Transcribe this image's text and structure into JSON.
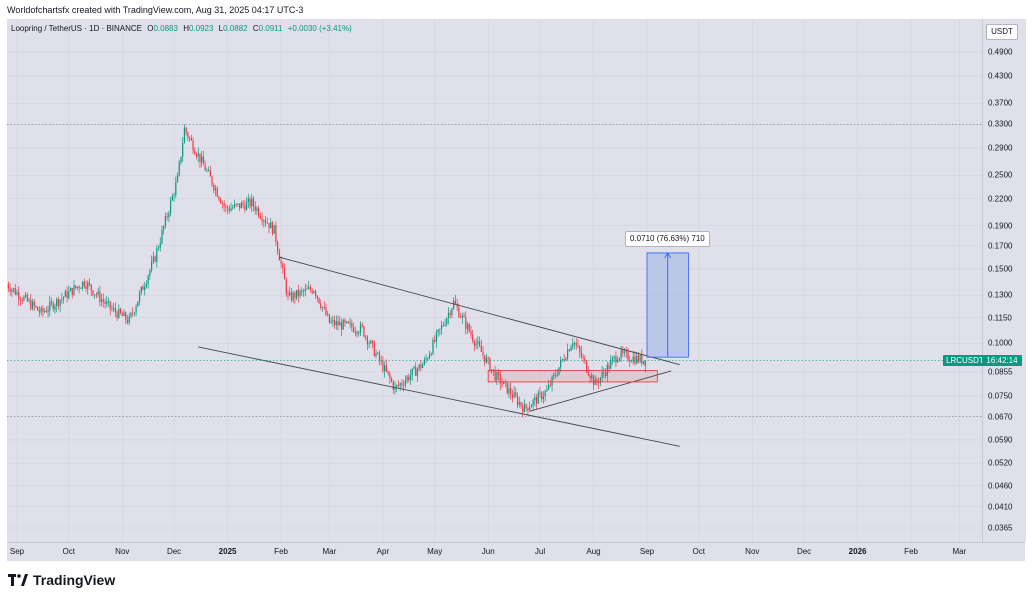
{
  "header": {
    "credit": "Worldofchartsfx created with TradingView.com, Aug 31, 2025 04:17 UTC-3"
  },
  "legend": {
    "pair": "Loopring / TetherUS · 1D · BINANCE",
    "o_label": "O",
    "o_value": "0.0883",
    "h_label": "H",
    "h_value": "0.0923",
    "l_label": "L",
    "l_value": "0.0882",
    "c_label": "C",
    "c_value": "0.0911",
    "change": "+0.0030 (+3.41%)"
  },
  "price_scale": {
    "currency": "USDT",
    "symbol_badge": "LRCUSDT",
    "time_badge": "16:42:14"
  },
  "measure": {
    "label": "0.0710 (76.63%) 710"
  },
  "branding": {
    "name": "TradingView"
  },
  "colors": {
    "up": "#089981",
    "down": "#f23645",
    "background": "#dfe0e9",
    "trendline": "#434651",
    "measure_fill": "#9cb3e6",
    "measure_line": "#2962ff",
    "box": "#e84040"
  },
  "chart_data": {
    "type": "candlestick",
    "symbol": "LRCUSDT",
    "scale": "log",
    "y_ticks": [
      "0.4900",
      "0.4300",
      "0.3700",
      "0.3300",
      "0.2900",
      "0.2500",
      "0.2200",
      "0.1900",
      "0.1700",
      "0.1500",
      "0.1300",
      "0.1150",
      "0.1000",
      "0.0855",
      "0.0750",
      "0.0670",
      "0.0590",
      "0.0520",
      "0.0460",
      "0.0410",
      "0.0365"
    ],
    "x_ticks": [
      {
        "label": "Sep",
        "bold": false
      },
      {
        "label": "Oct",
        "bold": false
      },
      {
        "label": "Nov",
        "bold": false
      },
      {
        "label": "Dec",
        "bold": false
      },
      {
        "label": "2025",
        "bold": true
      },
      {
        "label": "Feb",
        "bold": false
      },
      {
        "label": "Mar",
        "bold": false
      },
      {
        "label": "Apr",
        "bold": false
      },
      {
        "label": "May",
        "bold": false
      },
      {
        "label": "Jun",
        "bold": false
      },
      {
        "label": "Jul",
        "bold": false
      },
      {
        "label": "Aug",
        "bold": false
      },
      {
        "label": "Sep",
        "bold": false
      },
      {
        "label": "Oct",
        "bold": false
      },
      {
        "label": "Nov",
        "bold": false
      },
      {
        "label": "Dec",
        "bold": false
      },
      {
        "label": "2026",
        "bold": true
      },
      {
        "label": "Feb",
        "bold": false
      },
      {
        "label": "Mar",
        "bold": false
      }
    ],
    "x_range": [
      "2024-09-01",
      "2026-03-31"
    ],
    "ylim": [
      0.034,
      0.55
    ],
    "last": {
      "open": 0.0883,
      "high": 0.0923,
      "low": 0.0882,
      "close": 0.0911
    },
    "key_closes": [
      {
        "date": "2024-08-26",
        "close": 0.138
      },
      {
        "date": "2024-09-15",
        "close": 0.118
      },
      {
        "date": "2024-10-10",
        "close": 0.14
      },
      {
        "date": "2024-10-25",
        "close": 0.121
      },
      {
        "date": "2024-11-05",
        "close": 0.113
      },
      {
        "date": "2024-11-20",
        "close": 0.16
      },
      {
        "date": "2024-12-03",
        "close": 0.245
      },
      {
        "date": "2024-12-07",
        "close": 0.322
      },
      {
        "date": "2024-12-20",
        "close": 0.255
      },
      {
        "date": "2024-12-31",
        "close": 0.208
      },
      {
        "date": "2025-01-15",
        "close": 0.215
      },
      {
        "date": "2025-01-28",
        "close": 0.185
      },
      {
        "date": "2025-02-05",
        "close": 0.128
      },
      {
        "date": "2025-02-20",
        "close": 0.135
      },
      {
        "date": "2025-03-01",
        "close": 0.112
      },
      {
        "date": "2025-03-20",
        "close": 0.108
      },
      {
        "date": "2025-04-08",
        "close": 0.078
      },
      {
        "date": "2025-04-25",
        "close": 0.09
      },
      {
        "date": "2025-05-12",
        "close": 0.125
      },
      {
        "date": "2025-05-25",
        "close": 0.1
      },
      {
        "date": "2025-06-05",
        "close": 0.084
      },
      {
        "date": "2025-06-22",
        "close": 0.07
      },
      {
        "date": "2025-07-05",
        "close": 0.077
      },
      {
        "date": "2025-07-20",
        "close": 0.102
      },
      {
        "date": "2025-08-02",
        "close": 0.08
      },
      {
        "date": "2025-08-15",
        "close": 0.094
      },
      {
        "date": "2025-08-31",
        "close": 0.0911
      }
    ],
    "horizontal_levels": [
      0.33,
      0.067
    ],
    "annotations": {
      "upper_trendline": [
        {
          "date": "2025-01-31",
          "price": 0.16
        },
        {
          "date": "2025-09-20",
          "price": 0.089
        }
      ],
      "lower_trendline": [
        {
          "date": "2024-12-15",
          "price": 0.098
        },
        {
          "date": "2025-09-20",
          "price": 0.057
        }
      ],
      "rising_support": [
        {
          "date": "2025-06-25",
          "price": 0.069
        },
        {
          "date": "2025-09-15",
          "price": 0.086
        }
      ],
      "support_box": {
        "from": "2025-06-01",
        "to": "2025-09-07",
        "top": 0.0862,
        "bottom": 0.081
      },
      "measure": {
        "from": "2025-09-01",
        "to": "2025-09-25",
        "base": 0.0927,
        "target": 0.1637
      }
    }
  }
}
